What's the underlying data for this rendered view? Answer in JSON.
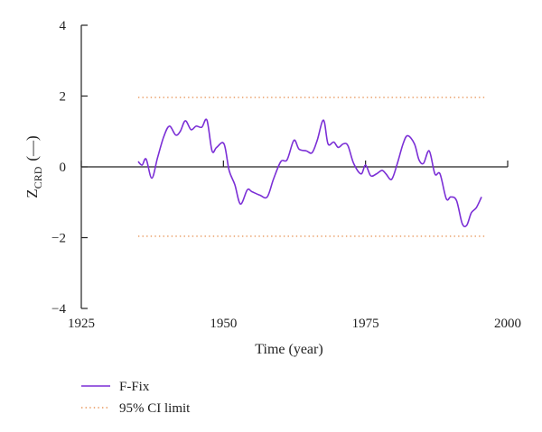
{
  "chart_data": {
    "type": "line",
    "xlabel": "Time (year)",
    "ylabel_main": "Z",
    "ylabel_sub": "CRD",
    "ylabel_unit": "(—)",
    "xlim": [
      1925,
      2000
    ],
    "ylim": [
      -4,
      4
    ],
    "x_ticks": [
      1925,
      1950,
      1975,
      2000
    ],
    "y_ticks": [
      4,
      2,
      0,
      -2,
      -4
    ],
    "x_tick_labels": [
      "1925",
      "1950",
      "1975",
      "2000"
    ],
    "y_tick_labels": [
      "4",
      "2",
      "0",
      "−2",
      "−4"
    ],
    "grid": false,
    "legend_position": "bottom-left",
    "series": [
      {
        "name": "F-Fix",
        "color": "#7b2fd6",
        "style": "solid",
        "x": [
          1935.0,
          1935.7,
          1936.4,
          1937.4,
          1938.4,
          1939.5,
          1940.5,
          1941.6,
          1942.4,
          1943.3,
          1944.3,
          1945.2,
          1946.2,
          1947.1,
          1948.0,
          1948.8,
          1950.1,
          1951.0,
          1952.0,
          1953.0,
          1954.2,
          1955.0,
          1956.4,
          1957.7,
          1958.8,
          1960.1,
          1961.2,
          1962.4,
          1963.3,
          1964.6,
          1965.6,
          1966.5,
          1967.6,
          1968.4,
          1969.4,
          1970.2,
          1971.1,
          1971.9,
          1972.9,
          1974.2,
          1975.0,
          1975.9,
          1976.9,
          1977.9,
          1978.6,
          1979.6,
          1980.6,
          1981.6,
          1982.4,
          1983.6,
          1984.4,
          1985.2,
          1986.2,
          1987.2,
          1988.1,
          1989.2,
          1990.0,
          1991.0,
          1992.0,
          1992.8,
          1993.6,
          1994.5,
          1995.4,
          1996.4
        ],
        "values": [
          0.15,
          0.05,
          0.22,
          -0.32,
          0.25,
          0.85,
          1.15,
          0.9,
          1.0,
          1.3,
          1.05,
          1.15,
          1.12,
          1.32,
          0.45,
          0.55,
          0.65,
          -0.1,
          -0.5,
          -1.05,
          -0.65,
          -0.7,
          -0.8,
          -0.85,
          -0.35,
          0.15,
          0.2,
          0.75,
          0.5,
          0.45,
          0.4,
          0.75,
          1.32,
          0.65,
          0.7,
          0.55,
          0.65,
          0.6,
          0.1,
          -0.2,
          0.05,
          -0.25,
          -0.2,
          -0.1,
          -0.2,
          -0.35,
          0.1,
          0.65,
          0.88,
          0.65,
          0.2,
          0.1,
          0.45,
          -0.2,
          -0.2,
          -0.9,
          -0.85,
          -0.95,
          -1.6,
          -1.65,
          -1.3,
          -1.15,
          -0.85,
          null
        ]
      },
      {
        "name": "95% CI limit",
        "color": "#e8965a",
        "style": "dotted",
        "lines": [
          1.96,
          -1.96
        ],
        "x_range": [
          1935,
          1996
        ]
      }
    ]
  }
}
